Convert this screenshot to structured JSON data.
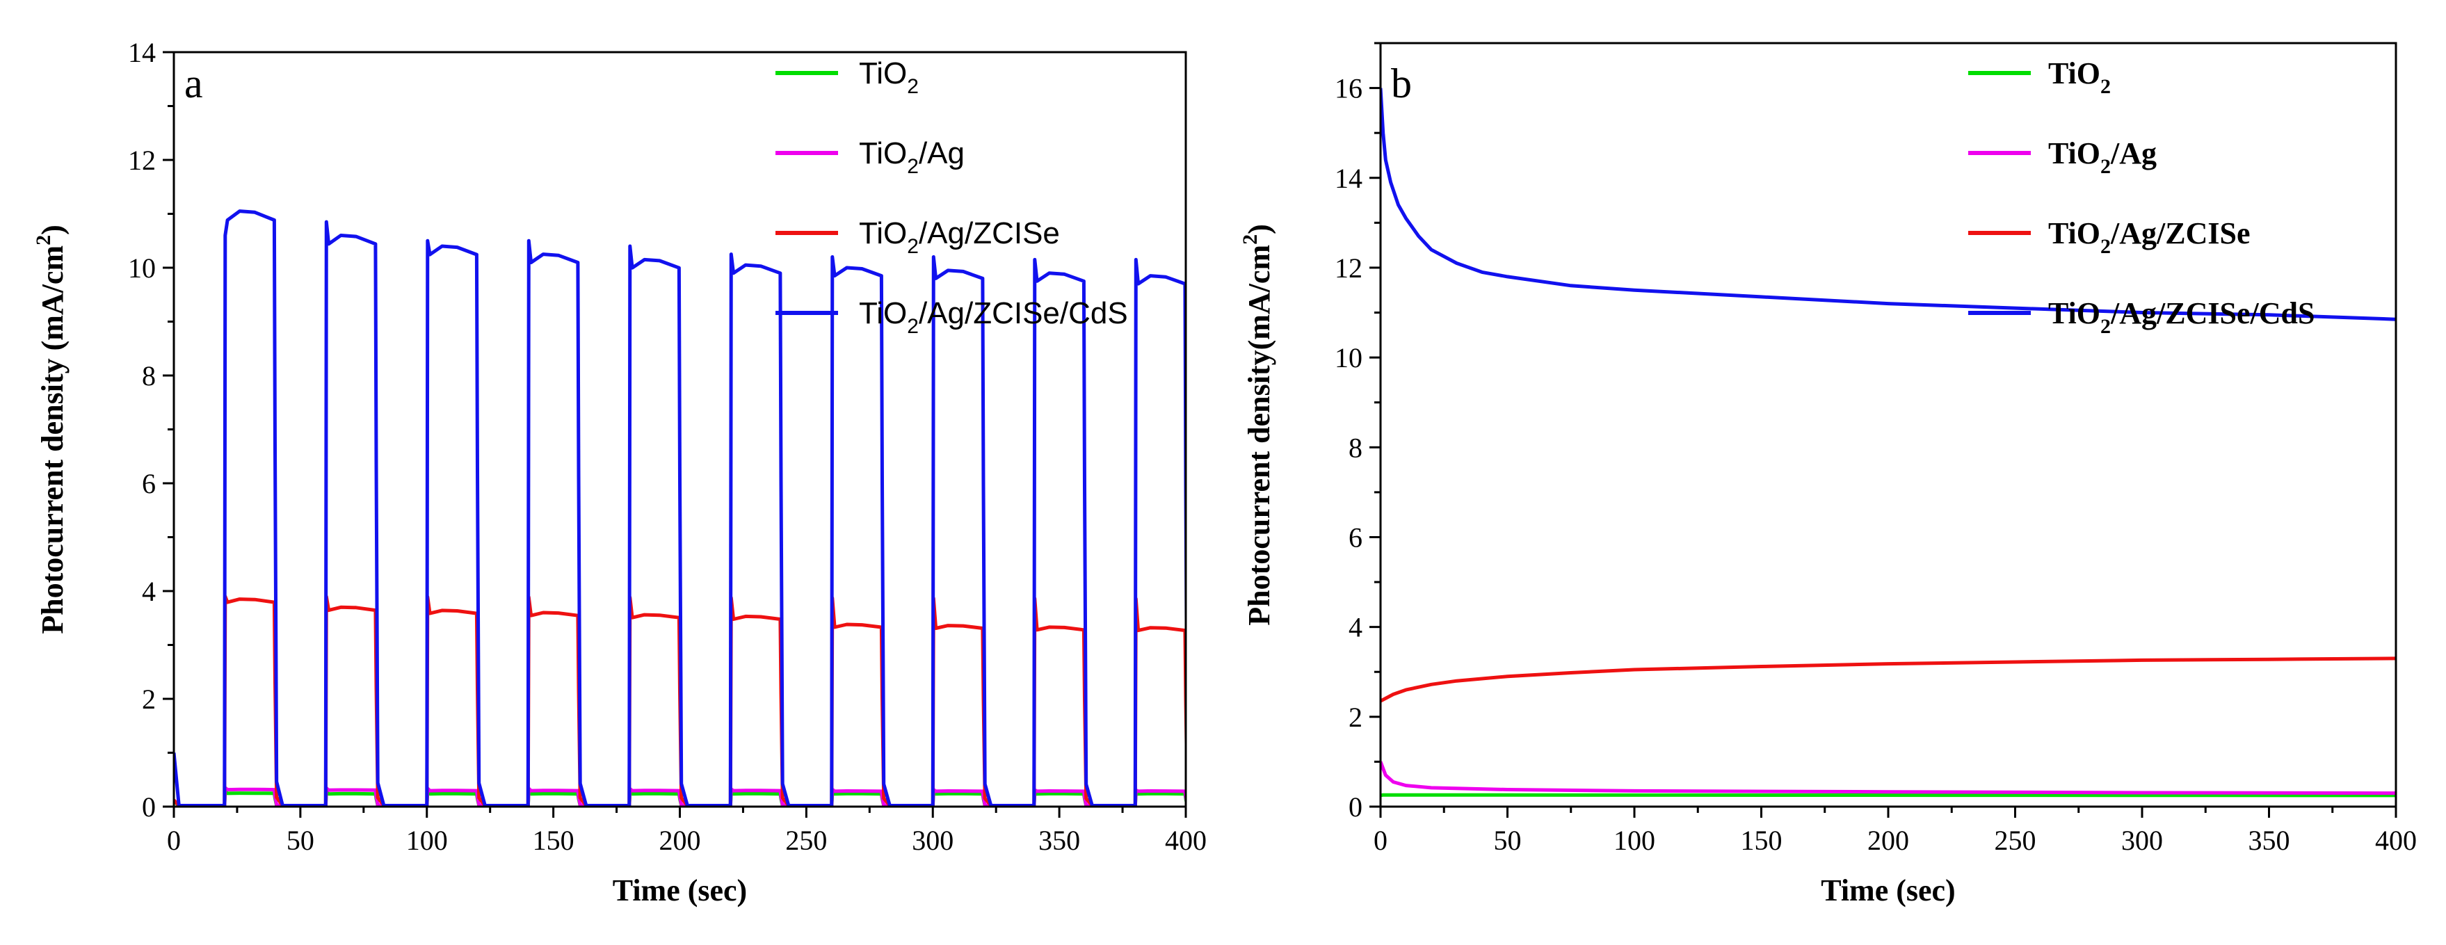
{
  "figure": {
    "layout": "two panels side by side"
  },
  "chart_data": [
    {
      "panel_label": "a",
      "type": "line",
      "title": "",
      "xlabel": "Time (sec)",
      "ylabel": "Photocurrent density (mA/cm",
      "ylabel_sup": "2",
      "ylabel_tail": ")",
      "xlim": [
        0,
        400
      ],
      "ylim": [
        0,
        14
      ],
      "xticks": [
        0,
        50,
        100,
        150,
        200,
        250,
        300,
        350,
        400
      ],
      "yticks": [
        0,
        2,
        4,
        6,
        8,
        10,
        12,
        14
      ],
      "legend_position": "top-right",
      "pattern": "chopped light, on/off periods of 20 s starting at 20 s",
      "on_intervals": [
        [
          20,
          40
        ],
        [
          60,
          80
        ],
        [
          100,
          120
        ],
        [
          140,
          160
        ],
        [
          180,
          200
        ],
        [
          220,
          240
        ],
        [
          260,
          280
        ],
        [
          300,
          320
        ],
        [
          340,
          360
        ],
        [
          380,
          400
        ]
      ],
      "series": [
        {
          "name": "TiO2",
          "label_main": "TiO",
          "label_sub": "2",
          "label_rest": "",
          "color": "#00dd00",
          "dark": 0.01,
          "on_values": [
            0.25,
            0.24,
            0.24,
            0.24,
            0.24,
            0.24,
            0.24,
            0.24,
            0.24,
            0.24
          ],
          "spike": 0.28
        },
        {
          "name": "TiO2/Ag",
          "label_main": "TiO",
          "label_sub": "2",
          "label_rest": "/Ag",
          "color": "#ee00ee",
          "dark": 0.02,
          "on_values": [
            0.32,
            0.31,
            0.3,
            0.3,
            0.3,
            0.3,
            0.29,
            0.29,
            0.29,
            0.29
          ],
          "spike": 0.35
        },
        {
          "name": "TiO2/Ag/ZCISe",
          "label_main": "TiO",
          "label_sub": "2",
          "label_rest": "/Ag/ZCISe",
          "color": "#ee1111",
          "dark": 0.02,
          "on_values": [
            3.85,
            3.7,
            3.64,
            3.6,
            3.56,
            3.53,
            3.38,
            3.36,
            3.33,
            3.32
          ],
          "spike": 3.9
        },
        {
          "name": "TiO2/Ag/ZCISe/CdS",
          "label_main": "TiO",
          "label_sub": "2",
          "label_rest": "/Ag/ZCISe/CdS",
          "color": "#1111ee",
          "dark": 0.02,
          "on_values": [
            11.05,
            10.6,
            10.4,
            10.25,
            10.15,
            10.05,
            10.0,
            9.95,
            9.9,
            9.85
          ],
          "spikes": [
            10.6,
            10.85,
            10.5,
            10.5,
            10.4,
            10.25,
            10.2,
            10.2,
            10.15,
            10.15
          ],
          "initial": 1.0
        }
      ]
    },
    {
      "panel_label": "b",
      "type": "line",
      "title": "",
      "xlabel": "Time (sec)",
      "ylabel": "Photocurrent density(mA/cm",
      "ylabel_sup": "2",
      "ylabel_tail": ")",
      "xlim": [
        0,
        400
      ],
      "ylim": [
        0,
        17
      ],
      "xticks": [
        0,
        50,
        100,
        150,
        200,
        250,
        300,
        350,
        400
      ],
      "yticks": [
        0,
        2,
        4,
        6,
        8,
        10,
        12,
        14,
        16
      ],
      "legend_position": "top-right",
      "series": [
        {
          "name": "TiO2",
          "label_main": "TiO",
          "label_sub": "2",
          "label_rest": "",
          "color": "#00dd00",
          "x": [
            0,
            1,
            400
          ],
          "y": [
            0.25,
            0.26,
            0.25
          ]
        },
        {
          "name": "TiO2/Ag",
          "label_main": "TiO",
          "label_sub": "2",
          "label_rest": "/Ag",
          "color": "#ee00ee",
          "x": [
            0,
            2,
            5,
            10,
            20,
            50,
            100,
            200,
            300,
            400
          ],
          "y": [
            1.0,
            0.7,
            0.55,
            0.47,
            0.42,
            0.38,
            0.35,
            0.33,
            0.31,
            0.3
          ]
        },
        {
          "name": "TiO2/Ag/ZCISe",
          "label_main": "TiO",
          "label_sub": "2",
          "label_rest": "/Ag/ZCISe",
          "color": "#ee1111",
          "x": [
            0,
            5,
            10,
            20,
            30,
            50,
            75,
            100,
            150,
            200,
            250,
            300,
            350,
            400
          ],
          "y": [
            2.35,
            2.5,
            2.6,
            2.72,
            2.8,
            2.9,
            2.98,
            3.05,
            3.12,
            3.18,
            3.22,
            3.26,
            3.28,
            3.3
          ]
        },
        {
          "name": "TiO2/Ag/ZCISe/CdS",
          "label_main": "TiO",
          "label_sub": "2",
          "label_rest": "/Ag/ZCISe/CdS",
          "color": "#1111ee",
          "x": [
            0,
            1,
            2,
            4,
            7,
            10,
            15,
            20,
            30,
            40,
            50,
            75,
            100,
            150,
            200,
            250,
            300,
            350,
            400
          ],
          "y": [
            16.0,
            15.0,
            14.4,
            13.9,
            13.4,
            13.1,
            12.7,
            12.4,
            12.1,
            11.9,
            11.8,
            11.6,
            11.5,
            11.35,
            11.2,
            11.1,
            11.0,
            10.95,
            10.85
          ]
        }
      ]
    }
  ]
}
